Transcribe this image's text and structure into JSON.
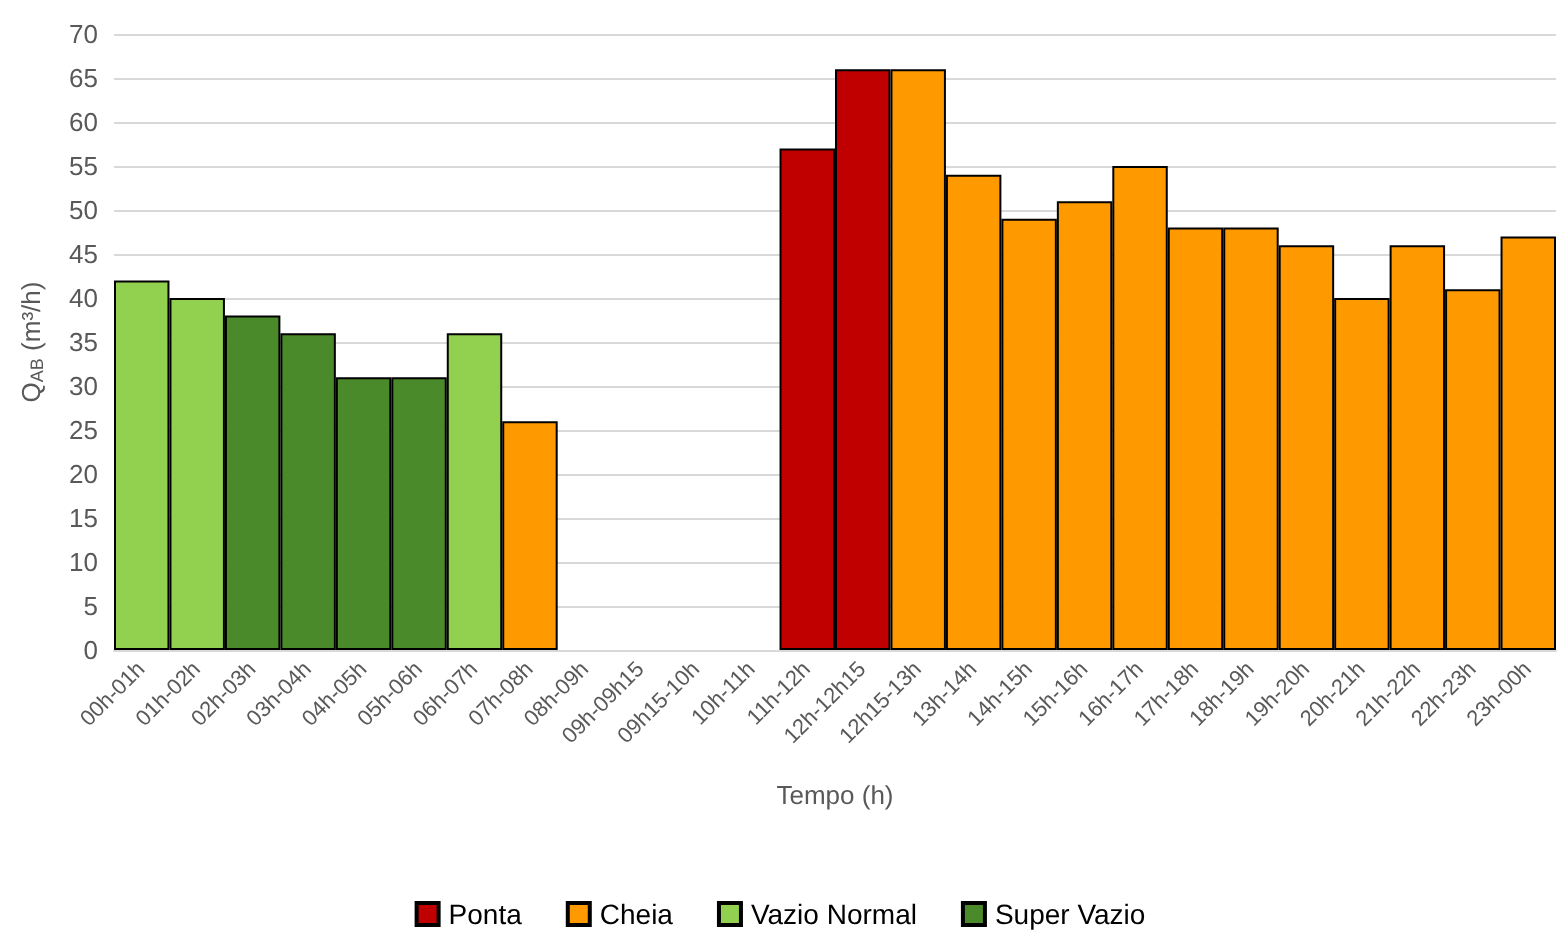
{
  "chart_data": {
    "type": "bar",
    "xlabel": "Tempo (h)",
    "ylabel": "Q$_{AB}$ (m³/h)",
    "categories": [
      "00h-01h",
      "01h-02h",
      "02h-03h",
      "03h-04h",
      "04h-05h",
      "05h-06h",
      "06h-07h",
      "07h-08h",
      "08h-09h",
      "09h-09h15",
      "09h15-10h",
      "10h-11h",
      "11h-12h",
      "12h-12h15",
      "12h15-13h",
      "13h-14h",
      "14h-15h",
      "15h-16h",
      "16h-17h",
      "17h-18h",
      "18h-19h",
      "19h-20h",
      "20h-21h",
      "21h-22h",
      "22h-23h",
      "23h-00h"
    ],
    "stacked": true,
    "series": [
      {
        "name": "Ponta",
        "color": "#c00000",
        "values": [
          null,
          null,
          null,
          null,
          null,
          null,
          null,
          null,
          null,
          null,
          null,
          null,
          57,
          66,
          null,
          null,
          null,
          null,
          null,
          null,
          null,
          null,
          null,
          null,
          null,
          null
        ]
      },
      {
        "name": "Cheia",
        "color": "#ff9900",
        "values": [
          null,
          null,
          null,
          null,
          null,
          null,
          null,
          26,
          null,
          null,
          null,
          null,
          null,
          null,
          66,
          54,
          49,
          51,
          55,
          48,
          48,
          46,
          40,
          46,
          41,
          47
        ]
      },
      {
        "name": "Vazio Normal",
        "color": "#92d050",
        "values": [
          42,
          40,
          null,
          null,
          null,
          null,
          36,
          null,
          null,
          null,
          null,
          null,
          null,
          null,
          null,
          null,
          null,
          null,
          null,
          null,
          null,
          null,
          null,
          null,
          null,
          null
        ]
      },
      {
        "name": "Super Vazio",
        "color": "#4a8a2a",
        "values": [
          null,
          null,
          38,
          36,
          31,
          31,
          null,
          null,
          null,
          null,
          null,
          null,
          null,
          null,
          null,
          null,
          null,
          null,
          null,
          null,
          null,
          null,
          null,
          null,
          null,
          null
        ]
      }
    ],
    "ylim": [
      0,
      70
    ],
    "yticks": [
      0,
      5,
      10,
      15,
      20,
      25,
      30,
      35,
      40,
      45,
      50,
      55,
      60,
      65,
      70
    ],
    "grid": "y",
    "legend": "bottom"
  }
}
